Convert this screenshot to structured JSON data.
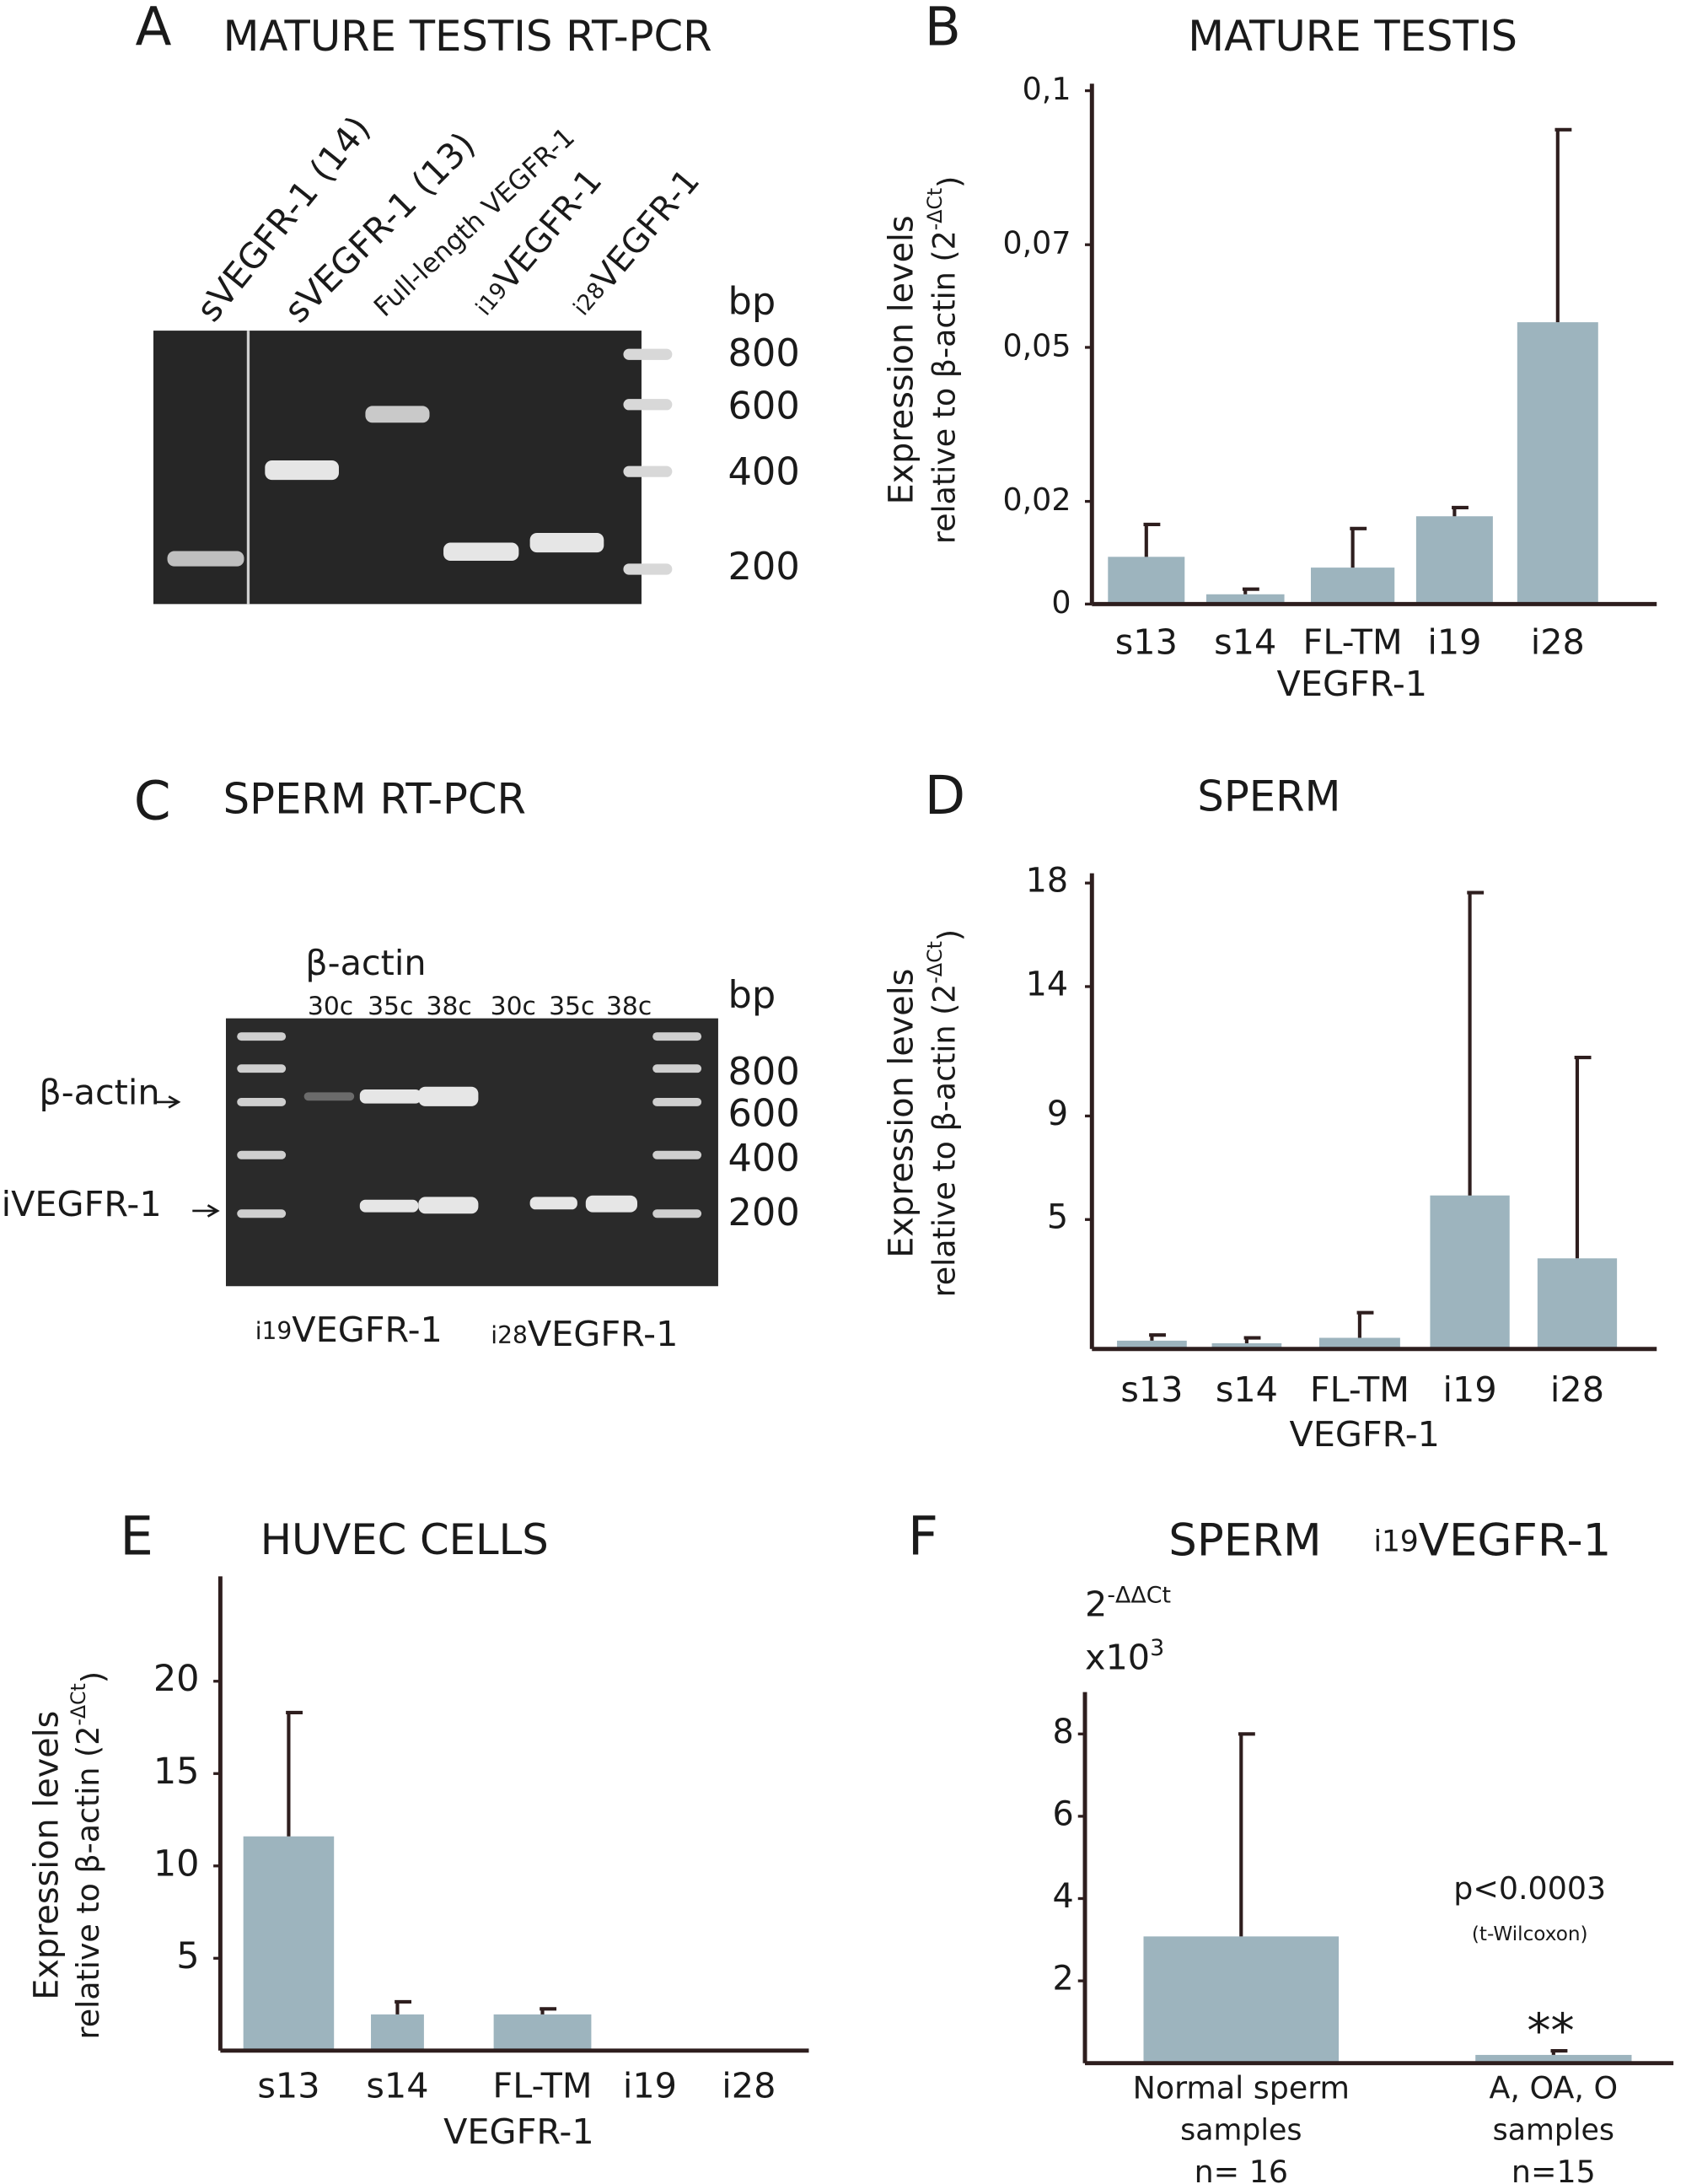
{
  "panel_labels": [
    "A",
    "B",
    "C",
    "D",
    "E",
    "F"
  ],
  "gels": [
    {
      "title": "MATURE TESTIS RT-PCR",
      "lanes": [
        "sVEGFR-1 (14)",
        "sVEGFR-1 (13)",
        "Full-length VEGFR-1"
      ],
      "lanes_prefixed": [
        {
          "prefix": "i19",
          "name": "VEGFR-1"
        },
        {
          "prefix": "i28",
          "name": "VEGFR-1"
        }
      ],
      "size_unit": "bp",
      "sizes": [
        800,
        600,
        400,
        200
      ]
    },
    {
      "title": "SPERM RT-PCR",
      "group_label": "β-actin",
      "cycles": [
        "30c",
        "35c",
        "38c",
        "30c",
        "35c",
        "38c"
      ],
      "band_labels": [
        "β-actin",
        "iVEGFR-1"
      ],
      "groups": [
        {
          "prefix": "i19",
          "name": "VEGFR-1"
        },
        {
          "prefix": "i28",
          "name": "VEGFR-1"
        }
      ],
      "size_unit": "bp",
      "sizes": [
        800,
        600,
        400,
        200
      ]
    }
  ],
  "chart_data": [
    {
      "type": "bar",
      "title": "MATURE TESTIS",
      "categories": [
        "s13",
        "s14",
        "FL-TM",
        "i19",
        "i28"
      ],
      "xlabel": "VEGFR-1",
      "ylabel": [
        "Expression levels",
        "relative to β-actin (2",
        "-ΔCt",
        ")"
      ],
      "values": [
        0.0092,
        0.0019,
        0.0071,
        0.0171,
        0.0549
      ],
      "errors": [
        0.0063,
        0.001,
        0.0076,
        0.0017,
        0.0375
      ],
      "color": "#9db4be",
      "ylim": [
        0,
        0.1
      ],
      "yticks": [
        0,
        {
          "value": 0.02,
          "label": "0,02"
        },
        {
          "value": 0.05,
          "label": "0,05"
        },
        {
          "value": 0.07,
          "label": "0,07"
        },
        {
          "value": 0.1,
          "label": "0,1"
        }
      ]
    },
    {
      "type": "bar",
      "title": "SPERM",
      "categories": [
        "s13",
        "s14",
        "FL-TM",
        "i19",
        "i28"
      ],
      "xlabel": "VEGFR-1",
      "ylabel": [
        "Expression levels",
        "relative to β-actin (2",
        "-ΔCt",
        ")"
      ],
      "values": [
        0.32,
        0.22,
        0.43,
        5.93,
        3.5
      ],
      "errors": [
        0.22,
        0.21,
        0.97,
        11.7,
        7.76
      ],
      "color": "#9db4be",
      "ylim": [
        0,
        18
      ],
      "yticks": [
        5,
        9,
        14,
        18
      ]
    },
    {
      "type": "bar",
      "title": "HUVEC CELLS",
      "categories": [
        "s13",
        "s14",
        "FL-TM",
        "i19",
        "i28"
      ],
      "xlabel": "VEGFR-1",
      "ylabel": [
        "Expression levels",
        "relative to β-actin (2",
        "-ΔCt",
        ")"
      ],
      "values": [
        11.6,
        1.96,
        1.96,
        0,
        0
      ],
      "errors": [
        6.7,
        0.68,
        0.3,
        0,
        0
      ],
      "color": "#9db4be",
      "ylim": [
        0,
        25
      ],
      "yticks": [
        5,
        10,
        15,
        20
      ]
    },
    {
      "type": "bar",
      "title": "SPERM",
      "title_gene": {
        "prefix": "i19",
        "name": "VEGFR-1"
      },
      "categories": [
        [
          "Normal sperm",
          "samples",
          "n= 16"
        ],
        [
          "A, OA, O",
          "samples",
          "n=15"
        ]
      ],
      "ylabel": [
        "2",
        "-ΔΔCt",
        "x10",
        "3"
      ],
      "values": [
        3.08,
        0.2
      ],
      "errors": [
        4.92,
        0.1
      ],
      "annotations": [
        "p<0.0003",
        "(t-Wilcoxon)",
        "**"
      ],
      "color": "#9db4be",
      "ylim": [
        0,
        9
      ],
      "yticks": [
        2,
        4,
        6,
        8
      ]
    }
  ]
}
